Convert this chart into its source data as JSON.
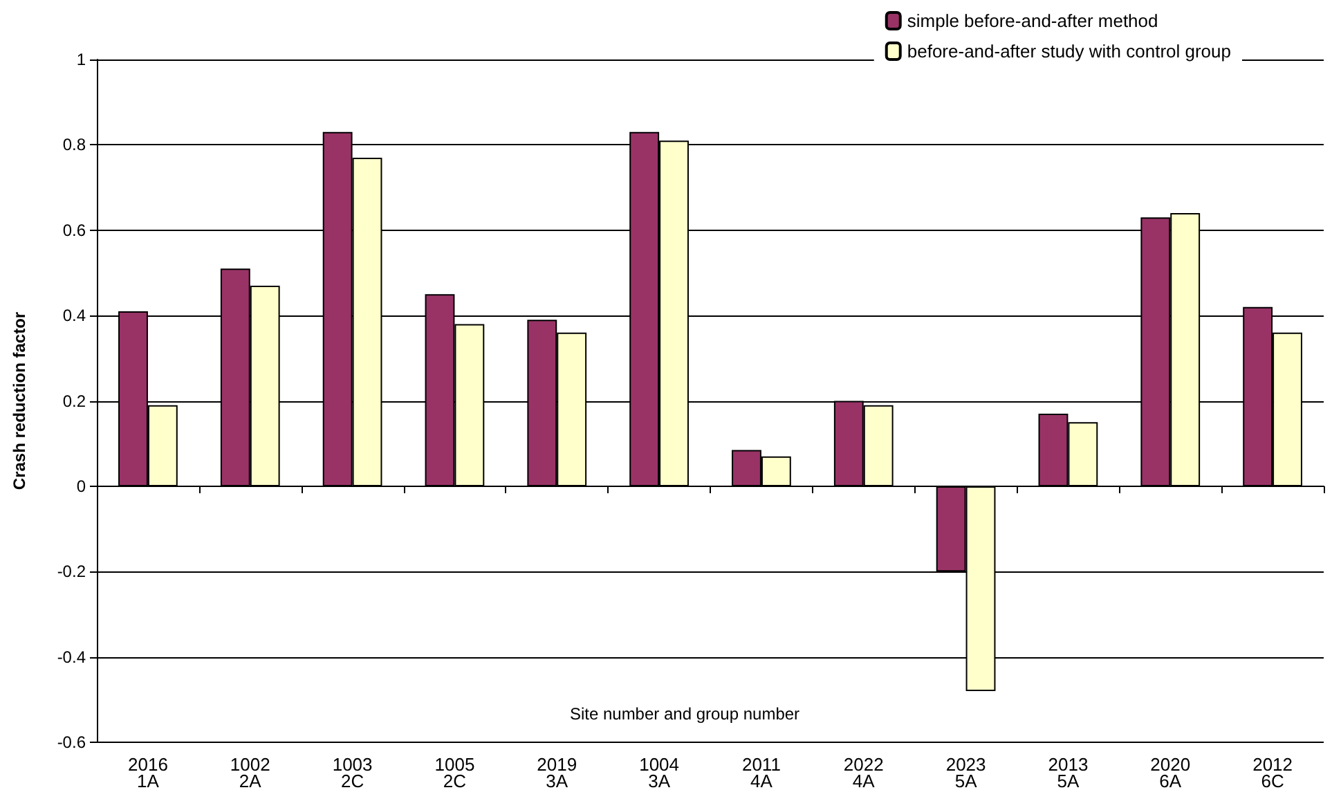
{
  "chart_data": {
    "type": "bar",
    "xlabel": "Site number and group number",
    "ylabel": "Crash reduction factor",
    "categories": [
      "2016\n1A",
      "1002\n2A",
      "1003\n2C",
      "1005\n2C",
      "2019\n3A",
      "1004\n3A",
      "2011\n4A",
      "2022\n4A",
      "2023\n5A",
      "2013\n5A",
      "2020\n6A",
      "2012\n6C"
    ],
    "series": [
      {
        "name": "simple before-and-after method",
        "color": "#993366",
        "values": [
          0.41,
          0.51,
          0.83,
          0.45,
          0.39,
          0.83,
          0.085,
          0.2,
          -0.2,
          0.17,
          0.63,
          0.42
        ]
      },
      {
        "name": "before-and-after study with control group",
        "color": "#ffffcc",
        "values": [
          0.19,
          0.47,
          0.77,
          0.38,
          0.36,
          0.81,
          0.07,
          0.19,
          -0.48,
          0.15,
          0.64,
          0.36
        ]
      }
    ],
    "ylim": [
      -0.6,
      1
    ],
    "yticks": [
      -0.6,
      -0.4,
      -0.2,
      0,
      0.2,
      0.4,
      0.6,
      0.8,
      1
    ],
    "grid": "y",
    "legend": "top right"
  }
}
